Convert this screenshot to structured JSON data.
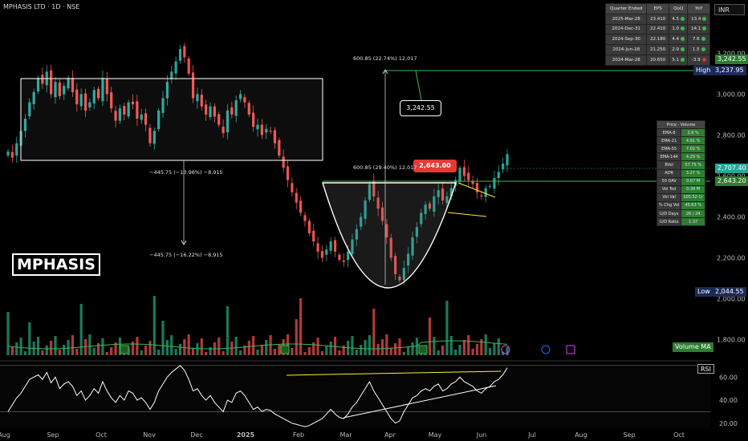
{
  "header": {
    "title": "MPHASIS LTD · 1D · NSE",
    "currency": "INR"
  },
  "logo": "MPHASIS",
  "quarter_table": {
    "headers": [
      "Quarter Ended",
      "EPS",
      "QoQ",
      "YoY"
    ],
    "rows": [
      {
        "quarter": "2025-Mar-28",
        "eps": "23.410",
        "qoq": "4.5",
        "yoy": "13.4",
        "yoy_color": "#3fb950"
      },
      {
        "quarter": "2024-Dec-31",
        "eps": "22.410",
        "qoq": "1.0",
        "yoy": "14.1",
        "yoy_color": "#3fb950"
      },
      {
        "quarter": "2024-Sep-30",
        "eps": "22.180",
        "qoq": "4.4",
        "yoy": "7.6",
        "yoy_color": "#3fb950"
      },
      {
        "quarter": "2024-Jun-28",
        "eps": "21.250",
        "qoq": "2.9",
        "yoy": "1.5",
        "yoy_color": "#3fb950"
      },
      {
        "quarter": "2024-Mar-28",
        "eps": "20.650",
        "qoq": "5.1",
        "yoy": "-3.9",
        "yoy_color": "#e03030"
      }
    ]
  },
  "price_volume_table": {
    "header": "Price - Volume",
    "rows": [
      {
        "label": "EMA-8",
        "value": "2.6 %"
      },
      {
        "label": "EMA-21",
        "value": "4.91 %"
      },
      {
        "label": "EMA-55",
        "value": "7.02 %"
      },
      {
        "label": "EMA-144",
        "value": "4.29 %"
      },
      {
        "label": "RVol",
        "value": "57.75 %"
      },
      {
        "label": "ADR",
        "value": "3.27 %"
      },
      {
        "label": "50 DAV",
        "value": "0.67 M"
      },
      {
        "label": "Vol Tod",
        "value": "0.39 M"
      },
      {
        "label": "Vol Val",
        "value": "105.52 Cr"
      },
      {
        "label": "% Chg Vol",
        "value": "45.63 %"
      },
      {
        "label": "U/D Days",
        "value": "26 / 24"
      },
      {
        "label": "U/D Ratio",
        "value": "1.37"
      }
    ]
  },
  "price_tags": {
    "target": "3,242.55",
    "high_label": "High",
    "high": "3,237.95",
    "last": "2,707.40",
    "breakout": "2,643.20",
    "low_label": "Low",
    "low": "2,044.55",
    "volume_ma": "Volume MA",
    "rsi": "RSI",
    "callout_target": "3,242.55",
    "callout_breakout": "2,643.00"
  },
  "annotations": {
    "box_drop_1": "−445.75 (−13.96%) −8,915",
    "box_drop_2": "−445.75 (−16.22%) −8,915",
    "cup_up": "600.85 (29.40%) 12,017",
    "target_up": "600.85 (22.74%) 12,017"
  },
  "chart_data": {
    "type": "candlestick",
    "price_axis": {
      "ticks": [
        "3,400.00",
        "3,200.00",
        "3,000.00",
        "2,800.00",
        "2,600.00",
        "2,400.00",
        "2,200.00",
        "2,000.00",
        "1,800.00"
      ],
      "ylim": [
        1720,
        3460
      ]
    },
    "time_axis": {
      "ticks": [
        "Aug",
        "Sep",
        "Oct",
        "Nov",
        "Dec",
        "2025",
        "Feb",
        "Mar",
        "Apr",
        "May",
        "Jun",
        "Jul",
        "Aug",
        "Sep",
        "Oct"
      ]
    },
    "rsi_axis": {
      "ticks": [
        "60.00",
        "40.00",
        "20.00"
      ],
      "ylim": [
        15,
        72
      ]
    },
    "closes": [
      2720,
      2690,
      2760,
      2820,
      2880,
      2960,
      3010,
      3080,
      3050,
      3110,
      3000,
      3060,
      2990,
      3040,
      3080,
      3010,
      2950,
      3000,
      2920,
      2960,
      3020,
      2980,
      3080,
      3000,
      2930,
      2870,
      2930,
      2900,
      2960,
      2950,
      2880,
      2900,
      2850,
      2760,
      2820,
      2920,
      2980,
      3060,
      3110,
      3160,
      3220,
      3180,
      3100,
      2980,
      3000,
      2940,
      2900,
      2940,
      2890,
      2850,
      2810,
      2920,
      2900,
      2970,
      3000,
      2960,
      2900,
      2840,
      2850,
      2800,
      2830,
      2820,
      2760,
      2700,
      2640,
      2580,
      2520,
      2470,
      2420,
      2380,
      2320,
      2280,
      2230,
      2200,
      2240,
      2280,
      2230,
      2190,
      2180,
      2230,
      2290,
      2340,
      2400,
      2480,
      2560,
      2500,
      2440,
      2380,
      2300,
      2200,
      2120,
      2090,
      2150,
      2220,
      2300,
      2350,
      2420,
      2460,
      2440,
      2500,
      2530,
      2480,
      2500,
      2540,
      2580,
      2640,
      2600,
      2580,
      2560,
      2520,
      2500,
      2540,
      2550,
      2590,
      2620,
      2660,
      2707
    ],
    "rsi": [
      30,
      36,
      42,
      46,
      52,
      58,
      60,
      62,
      58,
      64,
      55,
      60,
      50,
      54,
      56,
      52,
      44,
      48,
      40,
      44,
      50,
      46,
      56,
      48,
      42,
      38,
      44,
      40,
      48,
      46,
      40,
      42,
      38,
      32,
      38,
      48,
      54,
      60,
      64,
      67,
      70,
      66,
      58,
      48,
      50,
      44,
      40,
      44,
      38,
      34,
      30,
      40,
      38,
      46,
      48,
      44,
      38,
      32,
      34,
      30,
      32,
      31,
      28,
      26,
      24,
      22,
      20,
      19,
      18,
      17,
      18,
      20,
      22,
      24,
      28,
      32,
      28,
      25,
      24,
      28,
      34,
      38,
      44,
      50,
      56,
      48,
      42,
      36,
      30,
      24,
      20,
      22,
      30,
      36,
      42,
      44,
      48,
      50,
      48,
      52,
      54,
      48,
      50,
      54,
      56,
      60,
      56,
      54,
      52,
      48,
      46,
      50,
      52,
      56,
      58,
      62,
      68
    ],
    "series": [
      {
        "name": "Volume MA"
      },
      {
        "name": "RSI"
      }
    ]
  }
}
